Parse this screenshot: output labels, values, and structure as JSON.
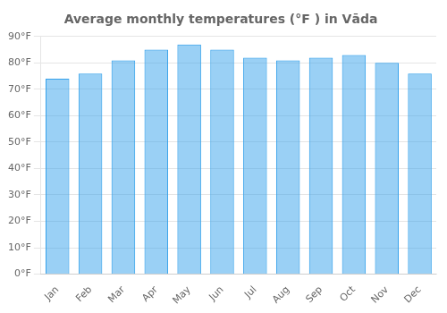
{
  "chart_data": {
    "type": "bar",
    "title": "Average monthly temperatures (°F ) in Vāda",
    "categories": [
      "Jan",
      "Feb",
      "Mar",
      "Apr",
      "May",
      "Jun",
      "Jul",
      "Aug",
      "Sep",
      "Oct",
      "Nov",
      "Dec"
    ],
    "values": [
      74,
      76,
      81,
      85,
      87,
      85,
      82,
      81,
      82,
      83,
      80,
      76
    ],
    "ylim": [
      0,
      90
    ],
    "yticks": [
      {
        "value": 0,
        "label": "0°F"
      },
      {
        "value": 10,
        "label": "10°F"
      },
      {
        "value": 20,
        "label": "20°F"
      },
      {
        "value": 30,
        "label": "30°F"
      },
      {
        "value": 40,
        "label": "40°F"
      },
      {
        "value": 50,
        "label": "50°F"
      },
      {
        "value": 60,
        "label": "60°F"
      },
      {
        "value": 70,
        "label": "70°F"
      },
      {
        "value": 80,
        "label": "80°F"
      },
      {
        "value": 90,
        "label": "90°F"
      }
    ],
    "grid": true
  }
}
